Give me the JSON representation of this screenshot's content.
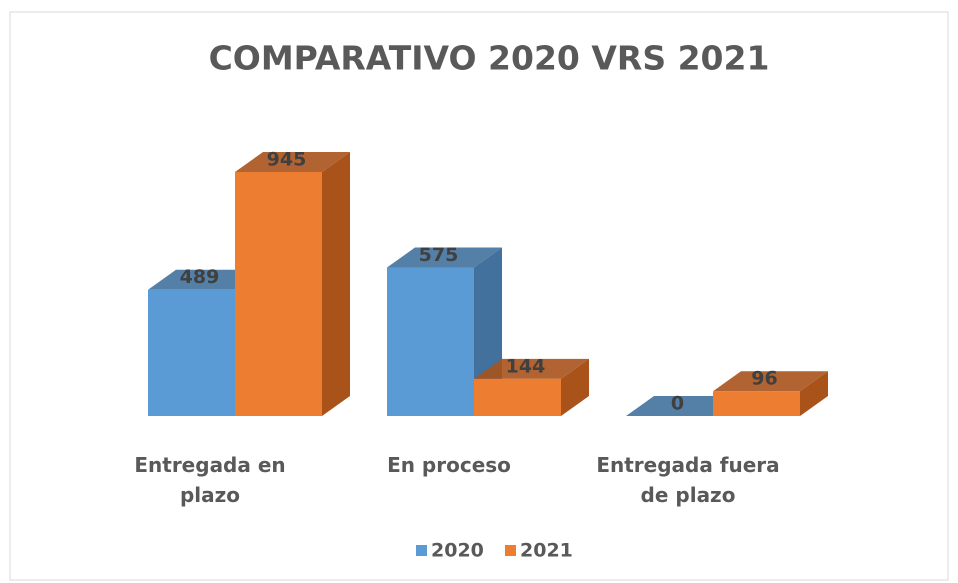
{
  "chart_data": {
    "type": "bar3d",
    "title": "COMPARATIVO 2020 VRS 2021",
    "categories": [
      "Entregada en plazo",
      "En proceso",
      "Entregada fuera de plazo"
    ],
    "series": [
      {
        "name": "2020",
        "color": "#5b9bd5",
        "side_color": "#41719c",
        "values": [
          489,
          575,
          0
        ]
      },
      {
        "name": "2021",
        "color": "#ed7d31",
        "side_color": "#a9531b",
        "values": [
          945,
          144,
          96
        ]
      }
    ]
  }
}
